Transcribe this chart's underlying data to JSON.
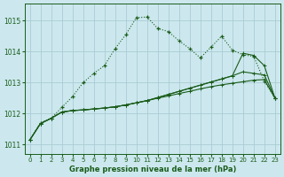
{
  "title": "Graphe pression niveau de la mer (hPa)",
  "background_color": "#cce8ee",
  "grid_color": "#aaccd4",
  "line_color_dark": "#1a5c1a",
  "line_color_mid": "#2d7a2d",
  "xlim": [
    -0.5,
    23.5
  ],
  "ylim": [
    1010.7,
    1015.55
  ],
  "yticks": [
    1011,
    1012,
    1013,
    1014,
    1015
  ],
  "xticks": [
    0,
    1,
    2,
    3,
    4,
    5,
    6,
    7,
    8,
    9,
    10,
    11,
    12,
    13,
    14,
    15,
    16,
    17,
    18,
    19,
    20,
    21,
    22,
    23
  ],
  "series1_x": [
    0,
    1,
    2,
    3,
    4,
    5,
    6,
    7,
    8,
    9,
    10,
    11,
    12,
    13,
    14,
    15,
    16,
    17,
    18,
    19,
    20,
    21,
    22,
    23
  ],
  "series1_y": [
    1011.15,
    1011.7,
    1011.85,
    1012.2,
    1012.55,
    1013.0,
    1013.3,
    1013.55,
    1014.1,
    1014.55,
    1015.1,
    1015.12,
    1014.75,
    1014.65,
    1014.35,
    1014.1,
    1013.8,
    1014.15,
    1014.5,
    1014.05,
    1013.9,
    1013.85,
    1013.05,
    1012.5
  ],
  "series2_x": [
    0,
    1,
    2,
    3,
    4,
    5,
    6,
    7,
    8,
    9,
    10,
    11,
    12,
    13,
    14,
    15,
    16,
    17,
    18,
    19,
    20,
    21,
    22,
    23
  ],
  "series2_y": [
    1011.15,
    1011.68,
    1011.85,
    1012.05,
    1012.1,
    1012.12,
    1012.15,
    1012.18,
    1012.22,
    1012.28,
    1012.35,
    1012.42,
    1012.5,
    1012.57,
    1012.65,
    1012.72,
    1012.8,
    1012.87,
    1012.93,
    1012.98,
    1013.03,
    1013.08,
    1013.1,
    1012.5
  ],
  "series3_x": [
    0,
    1,
    2,
    3,
    4,
    5,
    6,
    7,
    8,
    9,
    10,
    11,
    12,
    13,
    14,
    15,
    16,
    17,
    18,
    19,
    20,
    21,
    22,
    23
  ],
  "series3_y": [
    1011.15,
    1011.68,
    1011.85,
    1012.05,
    1012.1,
    1012.12,
    1012.15,
    1012.18,
    1012.22,
    1012.28,
    1012.35,
    1012.42,
    1012.52,
    1012.62,
    1012.72,
    1012.82,
    1012.92,
    1013.02,
    1013.12,
    1013.22,
    1013.95,
    1013.88,
    1013.55,
    1012.5
  ],
  "series4_x": [
    0,
    1,
    2,
    3,
    4,
    5,
    6,
    7,
    8,
    9,
    10,
    11,
    12,
    13,
    14,
    15,
    16,
    17,
    18,
    19,
    20,
    21,
    22,
    23
  ],
  "series4_y": [
    1011.15,
    1011.68,
    1011.85,
    1012.05,
    1012.1,
    1012.12,
    1012.15,
    1012.18,
    1012.22,
    1012.28,
    1012.35,
    1012.42,
    1012.52,
    1012.62,
    1012.72,
    1012.82,
    1012.92,
    1013.02,
    1013.12,
    1013.22,
    1013.35,
    1013.3,
    1013.25,
    1012.5
  ]
}
